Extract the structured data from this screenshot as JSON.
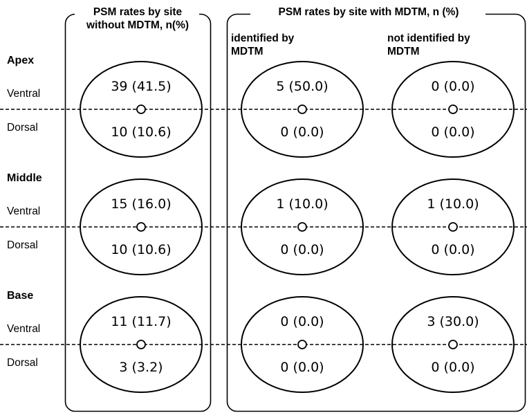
{
  "panels": {
    "without": {
      "title_line1": "PSM rates by site",
      "title_line2": "without MDTM, n(%)"
    },
    "with": {
      "title": "PSM rates by site with MDTM, n (%)",
      "identified_line1": "identified by",
      "identified_line2": "MDTM",
      "not_identified_line1": "not identified by",
      "not_identified_line2": "MDTM"
    }
  },
  "sites": [
    {
      "name": "Apex",
      "ventral": "Ventral",
      "dorsal": "Dorsal",
      "without": {
        "ventral": "39 (41.5)",
        "dorsal": "10 (10.6)"
      },
      "identified": {
        "ventral": "5 (50.0)",
        "dorsal": "0 (0.0)"
      },
      "not_identified": {
        "ventral": "0 (0.0)",
        "dorsal": "0 (0.0)"
      }
    },
    {
      "name": "Middle",
      "ventral": "Ventral",
      "dorsal": "Dorsal",
      "without": {
        "ventral": "15 (16.0)",
        "dorsal": "10 (10.6)"
      },
      "identified": {
        "ventral": "1 (10.0)",
        "dorsal": "0 (0.0)"
      },
      "not_identified": {
        "ventral": "1 (10.0)",
        "dorsal": "0 (0.0)"
      }
    },
    {
      "name": "Base",
      "ventral": "Ventral",
      "dorsal": "Dorsal",
      "without": {
        "ventral": "11 (11.7)",
        "dorsal": "3 (3.2)"
      },
      "identified": {
        "ventral": "0 (0.0)",
        "dorsal": "0 (0.0)"
      },
      "not_identified": {
        "ventral": "3 (30.0)",
        "dorsal": "0 (0.0)"
      }
    }
  ]
}
